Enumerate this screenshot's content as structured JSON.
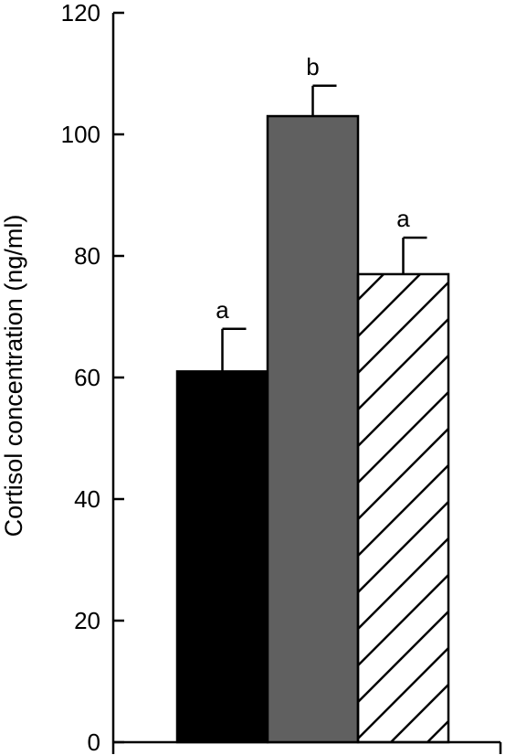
{
  "chart_data": {
    "type": "bar",
    "title": "",
    "xlabel": "",
    "ylabel": "Cortisol concentration (ng/ml)",
    "ylim": [
      0,
      120
    ],
    "yticks": [
      0,
      20,
      40,
      60,
      80,
      100,
      120
    ],
    "grid": false,
    "bars": [
      {
        "value": 61,
        "error": 7,
        "label": "a",
        "fill": "#000000",
        "pattern": "solid"
      },
      {
        "value": 103,
        "error": 5,
        "label": "b",
        "fill": "#606060",
        "pattern": "solid"
      },
      {
        "value": 77,
        "error": 6,
        "label": "a",
        "fill": "#ffffff",
        "pattern": "diagonal-hatch"
      }
    ]
  }
}
